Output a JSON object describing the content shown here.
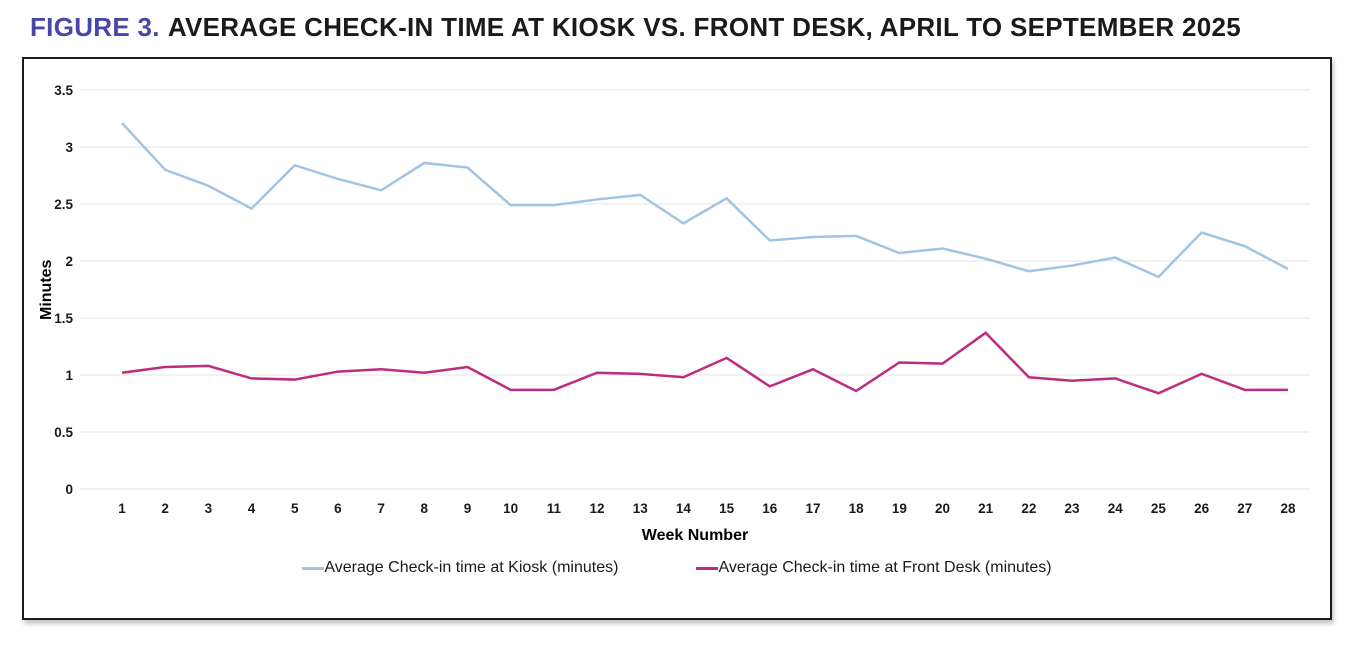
{
  "figure": {
    "label": "FIGURE 3.",
    "title": "AVERAGE CHECK-IN TIME AT KIOSK VS. FRONT DESK, APRIL TO SEPTEMBER 2025",
    "label_color": "#4647a8",
    "title_color": "#1a1a1a"
  },
  "chart_data": {
    "type": "line",
    "x": [
      1,
      2,
      3,
      4,
      5,
      6,
      7,
      8,
      9,
      10,
      11,
      12,
      13,
      14,
      15,
      16,
      17,
      18,
      19,
      20,
      21,
      22,
      23,
      24,
      25,
      26,
      27,
      28
    ],
    "series": [
      {
        "name": "Average Check-in time at Kiosk (minutes)",
        "color": "#a2c3e3",
        "values": [
          3.21,
          2.8,
          2.66,
          2.46,
          2.84,
          2.72,
          2.62,
          2.86,
          2.82,
          2.49,
          2.49,
          2.54,
          2.58,
          2.33,
          2.55,
          2.18,
          2.21,
          2.22,
          2.07,
          2.11,
          2.02,
          1.91,
          1.96,
          2.03,
          1.86,
          2.25,
          2.13,
          1.93
        ]
      },
      {
        "name": "Average Check-in time at Front Desk (minutes)",
        "color": "#be2c7e",
        "values": [
          1.02,
          1.07,
          1.08,
          0.97,
          0.96,
          1.03,
          1.05,
          1.02,
          1.07,
          0.87,
          0.87,
          1.02,
          1.01,
          0.98,
          1.15,
          0.9,
          1.05,
          0.86,
          1.11,
          1.1,
          1.37,
          0.98,
          0.95,
          0.97,
          0.84,
          1.01,
          0.87,
          0.87
        ]
      }
    ],
    "xlabel": "Week Number",
    "ylabel": "Minutes",
    "ylim": [
      0,
      3.5
    ],
    "ytick_values": [
      0,
      0.5,
      1,
      1.5,
      2,
      2.5,
      3,
      3.5
    ],
    "ytick_labels": [
      "0",
      "0.5",
      "1",
      "1.5",
      "2",
      "2.5",
      "3",
      "3.5"
    ],
    "grid": true,
    "gridline_color": "#e3e3e3",
    "legend_position": "bottom"
  }
}
